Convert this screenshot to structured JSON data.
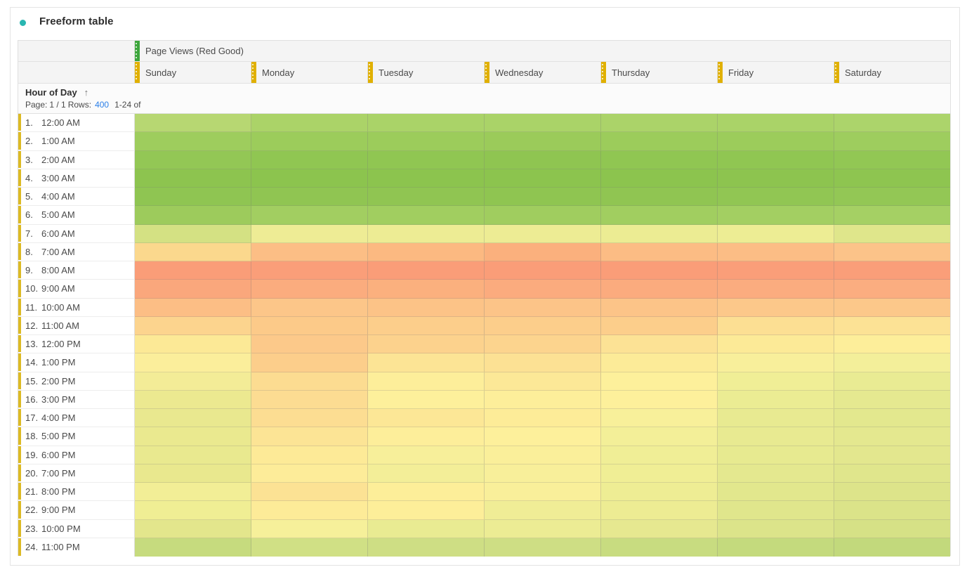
{
  "panel": {
    "title": "Freeform table",
    "accent_color": "#29b6b1"
  },
  "table": {
    "metric_header": "Page Views (Red Good)",
    "metric_handle_color": "#3da63c",
    "day_handle_color": "#e0b000",
    "row_marker_color": "#dcba25",
    "dimension_header": "Hour of Day",
    "sort_arrow": "↑",
    "pagination": {
      "page_label": "Page:",
      "page_value": "1 / 1",
      "rows_label": "Rows:",
      "rows_value": "400",
      "range_text": "1-24 of"
    },
    "columns": [
      "Sunday",
      "Monday",
      "Tuesday",
      "Wednesday",
      "Thursday",
      "Friday",
      "Saturday"
    ],
    "rows": [
      {
        "num": "1.",
        "time": "12:00 AM",
        "colors": [
          "#b7d772",
          "#abd368",
          "#aad368",
          "#aad368",
          "#abd369",
          "#aad368",
          "#acd46b"
        ]
      },
      {
        "num": "2.",
        "time": "1:00 AM",
        "colors": [
          "#9ecd5d",
          "#9ccc5b",
          "#9ccc5b",
          "#9bcb5a",
          "#9ccc5b",
          "#9ccc5b",
          "#9ecd5e"
        ]
      },
      {
        "num": "3.",
        "time": "2:00 AM",
        "colors": [
          "#93c755",
          "#90c652",
          "#90c652",
          "#8fc551",
          "#90c652",
          "#90c652",
          "#92c754"
        ]
      },
      {
        "num": "4.",
        "time": "3:00 AM",
        "colors": [
          "#8dc44f",
          "#8cc44e",
          "#8cc44e",
          "#8cc44e",
          "#8cc44e",
          "#8dc44f",
          "#8ec550"
        ]
      },
      {
        "num": "5.",
        "time": "4:00 AM",
        "colors": [
          "#8fc552",
          "#90c552",
          "#90c552",
          "#8fc551",
          "#90c552",
          "#91c653",
          "#93c755"
        ]
      },
      {
        "num": "6.",
        "time": "5:00 AM",
        "colors": [
          "#9dcb5c",
          "#a2ce61",
          "#a1ce60",
          "#a0cd5f",
          "#a1ce60",
          "#a3cf62",
          "#a5d064"
        ]
      },
      {
        "num": "7.",
        "time": "6:00 AM",
        "colors": [
          "#d4e183",
          "#eeec95",
          "#edec94",
          "#edec94",
          "#ecec93",
          "#eded94",
          "#dfe68b"
        ]
      },
      {
        "num": "8.",
        "time": "7:00 AM",
        "colors": [
          "#fbd88d",
          "#fcbe85",
          "#fcb981",
          "#fbb07d",
          "#fcbc84",
          "#fcbd85",
          "#fcc389"
        ]
      },
      {
        "num": "9.",
        "time": "8:00 AM",
        "colors": [
          "#fa9d78",
          "#fa9e79",
          "#fa9d78",
          "#fa9d78",
          "#fa9d78",
          "#fa9e79",
          "#fa9e79"
        ]
      },
      {
        "num": "10.",
        "time": "9:00 AM",
        "colors": [
          "#faa77c",
          "#fbac7e",
          "#fbb07e",
          "#fbab7e",
          "#fbab7e",
          "#fbac7f",
          "#fbad80"
        ]
      },
      {
        "num": "11.",
        "time": "10:00 AM",
        "colors": [
          "#fcbe85",
          "#fcc689",
          "#fcc387",
          "#fcc488",
          "#fcc488",
          "#fcc88a",
          "#fcc88a"
        ]
      },
      {
        "num": "12.",
        "time": "11:00 AM",
        "colors": [
          "#fcd48e",
          "#fcca89",
          "#fcce8b",
          "#fcce8b",
          "#fcce8b",
          "#fcdf93",
          "#fce295"
        ]
      },
      {
        "num": "13.",
        "time": "12:00 PM",
        "colors": [
          "#fce996",
          "#fcc98a",
          "#fcd28d",
          "#fcd48e",
          "#fce295",
          "#fcea97",
          "#fdee9a"
        ]
      },
      {
        "num": "14.",
        "time": "1:00 PM",
        "colors": [
          "#fbee9b",
          "#fcce8b",
          "#fce495",
          "#fce194",
          "#fceb98",
          "#f8ef9b",
          "#f3ef9a"
        ]
      },
      {
        "num": "15.",
        "time": "2:00 PM",
        "colors": [
          "#f3ec97",
          "#fcdc91",
          "#fdee9a",
          "#fce897",
          "#fdf09b",
          "#f0ee96",
          "#e9eb93"
        ]
      },
      {
        "num": "16.",
        "time": "3:00 PM",
        "colors": [
          "#ece990",
          "#fcdc92",
          "#fdf09b",
          "#fdee9a",
          "#fdf09b",
          "#ebec93",
          "#e5e990"
        ]
      },
      {
        "num": "17.",
        "time": "4:00 PM",
        "colors": [
          "#e9e88f",
          "#fcdd92",
          "#fce796",
          "#fdec98",
          "#f8f09a",
          "#e8ea91",
          "#e3e88e"
        ]
      },
      {
        "num": "18.",
        "time": "5:00 PM",
        "colors": [
          "#eae98f",
          "#fce495",
          "#fdee9a",
          "#fdf09b",
          "#f3ef98",
          "#e8ea91",
          "#e4e88f"
        ]
      },
      {
        "num": "19.",
        "time": "6:00 PM",
        "colors": [
          "#e9e98f",
          "#fdea97",
          "#f7ef9a",
          "#faef9a",
          "#f0ee96",
          "#e7ea90",
          "#e3e78e"
        ]
      },
      {
        "num": "20.",
        "time": "7:00 PM",
        "colors": [
          "#e9e88e",
          "#fdec99",
          "#f3ee98",
          "#f8ef9a",
          "#f0ee95",
          "#e4e88f",
          "#e0e68c"
        ]
      },
      {
        "num": "21.",
        "time": "8:00 PM",
        "colors": [
          "#f2ee96",
          "#fce294",
          "#fdee99",
          "#f9ef9a",
          "#eeed94",
          "#e2e78d",
          "#dde48a"
        ]
      },
      {
        "num": "22.",
        "time": "9:00 PM",
        "colors": [
          "#f0ee94",
          "#fdeb98",
          "#fdee99",
          "#f0ed96",
          "#edec93",
          "#e0e68c",
          "#dbe389"
        ]
      },
      {
        "num": "23.",
        "time": "10:00 PM",
        "colors": [
          "#e3e68c",
          "#f6f09a",
          "#e9eb92",
          "#ecec94",
          "#e6e890",
          "#dce48a",
          "#d6e186"
        ]
      },
      {
        "num": "24.",
        "time": "11:00 PM",
        "colors": [
          "#c6db7e",
          "#d0e085",
          "#cede84",
          "#cede84",
          "#c8dc80",
          "#c4da7d",
          "#c2d97c"
        ]
      }
    ]
  }
}
